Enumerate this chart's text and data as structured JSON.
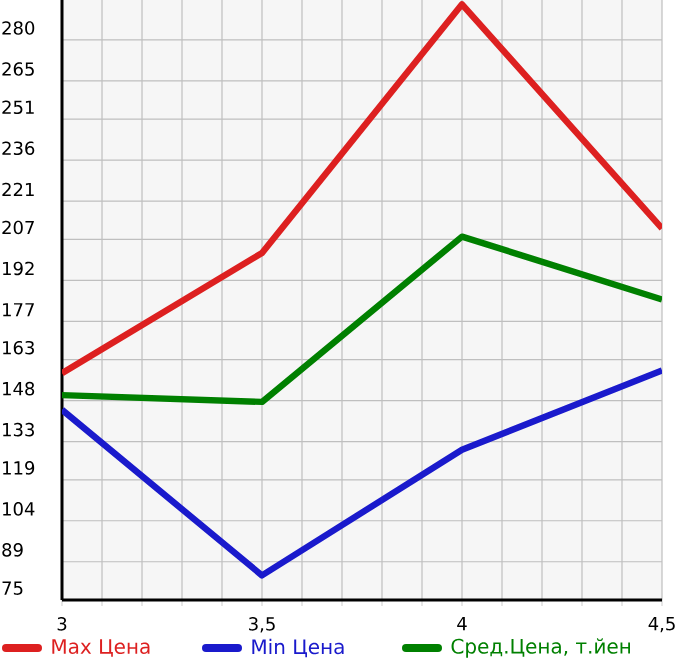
{
  "chart_data": {
    "type": "line",
    "x": [
      3,
      3.5,
      4,
      4.5
    ],
    "series": [
      {
        "name": "Max Цена",
        "color": "#dd2020",
        "values": [
          158,
          202,
          293,
          211
        ]
      },
      {
        "name": "Min Цена",
        "color": "#1a1acc",
        "values": [
          144.6,
          84,
          130,
          159
        ]
      },
      {
        "name": "Сред.Цена, т.йен",
        "color": "#008000",
        "values": [
          150,
          147.5,
          208,
          185
        ]
      }
    ],
    "xlim": [
      3,
      4.5
    ],
    "xticks": [
      {
        "value": 3,
        "label": "3"
      },
      {
        "value": 3.5,
        "label": "3,5"
      },
      {
        "value": 4,
        "label": "4"
      },
      {
        "value": 4.5,
        "label": "4,5"
      }
    ],
    "ylim": [
      75,
      294.6
    ],
    "yticks": [
      75,
      89,
      104,
      119,
      133,
      148,
      163,
      177,
      192,
      207,
      221,
      236,
      251,
      265,
      280
    ],
    "grid": true,
    "legend": "bottom",
    "marker": "none",
    "line_style": "solid"
  }
}
